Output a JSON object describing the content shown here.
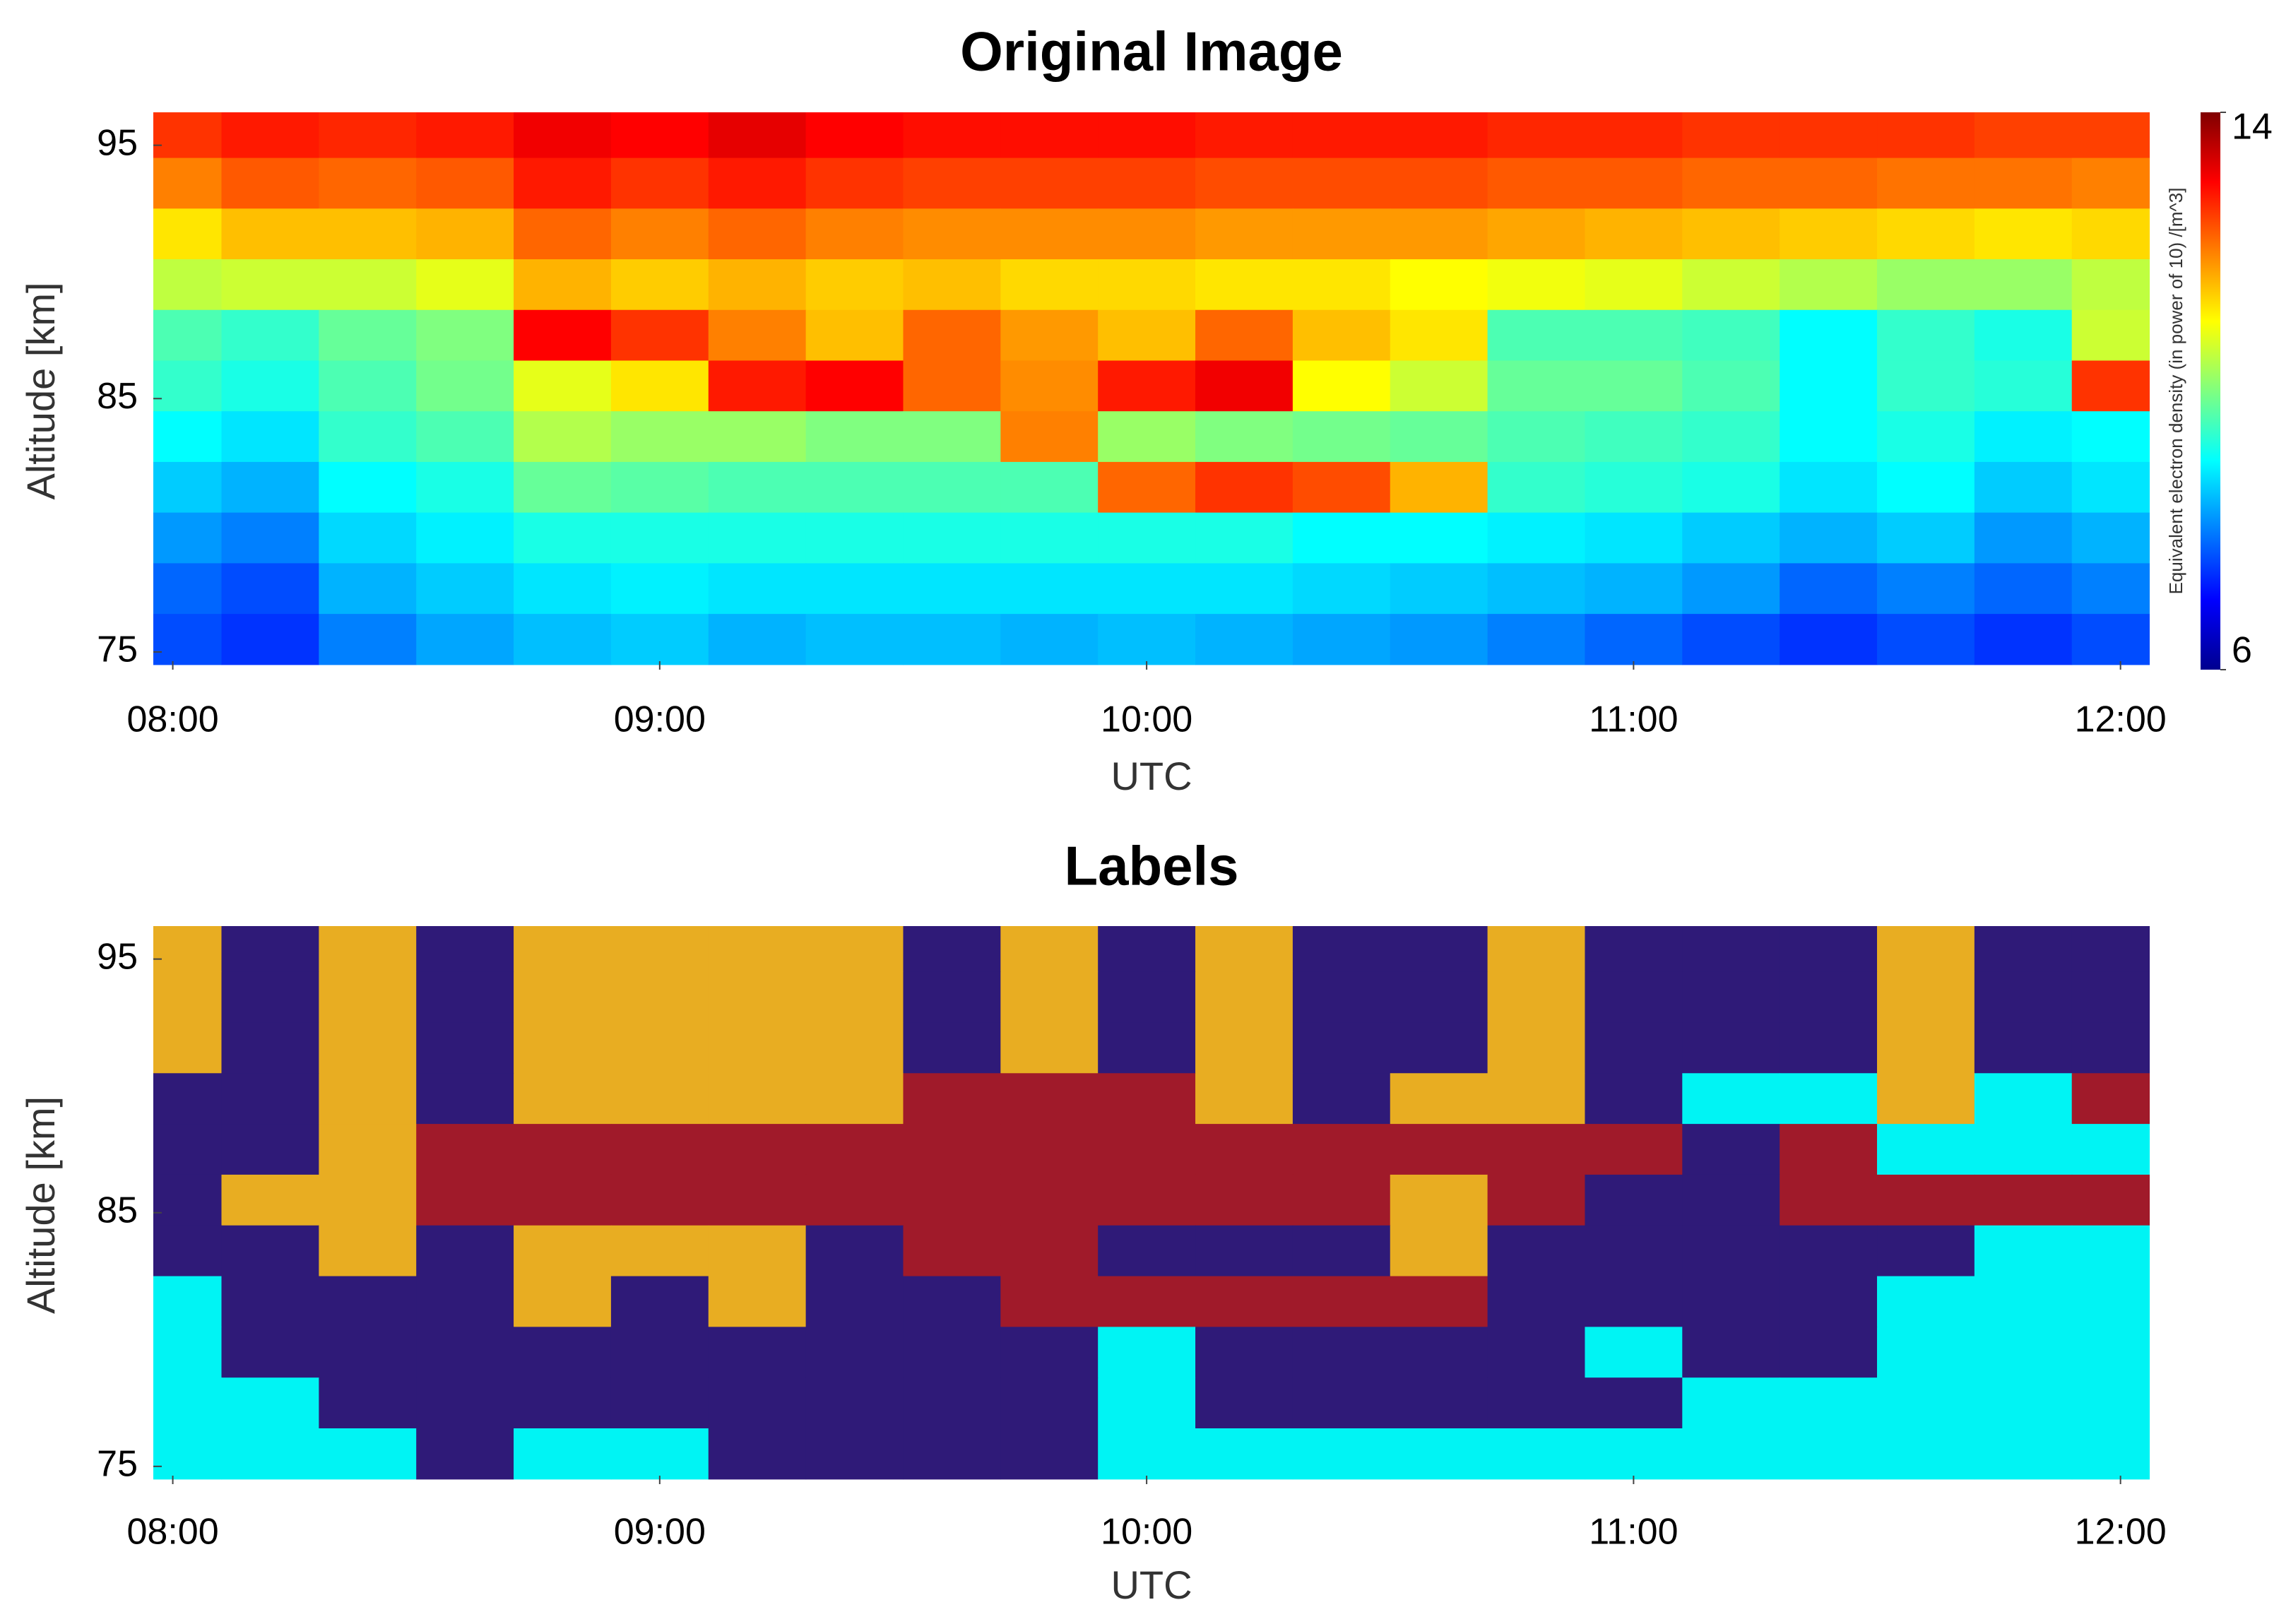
{
  "chart_data": [
    {
      "type": "heatmap",
      "title": "Original Image",
      "xlabel": "UTC",
      "ylabel": "Altitude [km]",
      "colorbar_label": "Equivalent electron density (in power of 10) /[m^3]",
      "colormap": "jet",
      "clim": [
        6,
        14
      ],
      "colorbar_ticks": [
        6,
        14
      ],
      "xlim": [
        7.96,
        12.06
      ],
      "ylim": [
        74.3,
        96.3
      ],
      "xticks": [
        {
          "value": 8,
          "label": "08:00"
        },
        {
          "value": 9,
          "label": "09:00"
        },
        {
          "value": 10,
          "label": "10:00"
        },
        {
          "value": 11,
          "label": "11:00"
        },
        {
          "value": 12,
          "label": "12:00"
        }
      ],
      "yticks": [
        75,
        85,
        95
      ],
      "x": [
        8.0,
        8.2,
        8.4,
        8.6,
        8.8,
        9.0,
        9.2,
        9.4,
        9.6,
        9.8,
        10.0,
        10.2,
        10.4,
        10.6,
        10.8,
        11.0,
        11.2,
        11.4,
        11.6,
        11.8,
        12.0
      ],
      "y": [
        95.5,
        93.5,
        91.5,
        89.5,
        87.5,
        85.5,
        83.5,
        81.5,
        79.5,
        77.5,
        75.5
      ],
      "z": [
        [
          12.6,
          12.8,
          12.7,
          12.8,
          13.1,
          13.0,
          13.2,
          13.0,
          12.9,
          12.9,
          12.9,
          12.8,
          12.8,
          12.8,
          12.7,
          12.7,
          12.6,
          12.6,
          12.6,
          12.5,
          12.5
        ],
        [
          12.0,
          12.3,
          12.2,
          12.3,
          12.8,
          12.6,
          12.8,
          12.6,
          12.5,
          12.5,
          12.5,
          12.4,
          12.4,
          12.4,
          12.3,
          12.3,
          12.2,
          12.2,
          12.1,
          12.1,
          12.0
        ],
        [
          11.2,
          11.5,
          11.5,
          11.6,
          12.2,
          12.0,
          12.2,
          12.0,
          11.9,
          11.9,
          11.9,
          11.8,
          11.8,
          11.8,
          11.7,
          11.6,
          11.5,
          11.4,
          11.3,
          11.2,
          11.3
        ],
        [
          10.5,
          10.6,
          10.6,
          10.8,
          11.6,
          11.4,
          11.6,
          11.4,
          11.5,
          11.3,
          11.3,
          11.2,
          11.2,
          11.0,
          10.9,
          10.8,
          10.6,
          10.4,
          10.2,
          10.2,
          10.5
        ],
        [
          9.6,
          9.4,
          9.8,
          10.0,
          13.0,
          12.6,
          12.0,
          11.5,
          12.2,
          11.8,
          11.5,
          12.2,
          11.5,
          11.2,
          9.6,
          9.6,
          9.5,
          9.0,
          9.4,
          9.2,
          10.6
        ],
        [
          9.4,
          9.2,
          9.6,
          9.9,
          10.8,
          11.2,
          12.8,
          13.0,
          12.2,
          11.9,
          12.8,
          13.1,
          11.0,
          10.6,
          9.8,
          9.8,
          9.6,
          9.0,
          9.4,
          9.3,
          12.6
        ],
        [
          9.0,
          8.8,
          9.4,
          9.6,
          10.4,
          10.2,
          10.2,
          10.0,
          10.0,
          12.0,
          10.2,
          10.0,
          9.9,
          9.8,
          9.6,
          9.5,
          9.4,
          9.0,
          9.2,
          8.9,
          9.0
        ],
        [
          8.6,
          8.4,
          9.0,
          9.2,
          9.8,
          9.7,
          9.6,
          9.6,
          9.6,
          9.6,
          12.2,
          12.6,
          12.4,
          11.6,
          9.4,
          9.3,
          9.2,
          8.8,
          9.0,
          8.6,
          8.8
        ],
        [
          8.2,
          8.0,
          8.7,
          8.9,
          9.2,
          9.2,
          9.2,
          9.2,
          9.2,
          9.2,
          9.2,
          9.2,
          9.0,
          9.0,
          8.9,
          8.8,
          8.6,
          8.4,
          8.6,
          8.2,
          8.4
        ],
        [
          7.8,
          7.6,
          8.4,
          8.6,
          8.8,
          8.9,
          8.8,
          8.8,
          8.8,
          8.8,
          8.8,
          8.8,
          8.7,
          8.6,
          8.5,
          8.4,
          8.2,
          7.8,
          8.0,
          7.8,
          8.0
        ],
        [
          7.6,
          7.4,
          8.0,
          8.3,
          8.5,
          8.6,
          8.4,
          8.5,
          8.5,
          8.4,
          8.5,
          8.4,
          8.3,
          8.2,
          8.0,
          7.8,
          7.6,
          7.4,
          7.6,
          7.4,
          7.6
        ]
      ]
    },
    {
      "type": "heatmap",
      "title": "Labels",
      "xlabel": "UTC",
      "ylabel": "Altitude [km]",
      "class_colors": [
        "#2f1a78",
        "#e8ad22",
        "#a01a2a",
        "#00f4f4"
      ],
      "xlim": [
        7.96,
        12.06
      ],
      "ylim": [
        74.3,
        96.3
      ],
      "xticks": [
        {
          "value": 8,
          "label": "08:00"
        },
        {
          "value": 9,
          "label": "09:00"
        },
        {
          "value": 10,
          "label": "10:00"
        },
        {
          "value": 11,
          "label": "11:00"
        },
        {
          "value": 12,
          "label": "12:00"
        }
      ],
      "yticks": [
        75,
        85,
        95
      ],
      "x": [
        8.0,
        8.2,
        8.4,
        8.6,
        8.8,
        9.0,
        9.2,
        9.4,
        9.6,
        9.8,
        10.0,
        10.2,
        10.4,
        10.6,
        10.8,
        11.0,
        11.2,
        11.4,
        11.6,
        11.8,
        12.0
      ],
      "y": [
        95.5,
        93.5,
        91.5,
        89.5,
        87.5,
        85.5,
        83.5,
        81.5,
        79.5,
        77.5,
        75.5
      ],
      "z": [
        [
          1,
          0,
          1,
          0,
          1,
          1,
          1,
          1,
          0,
          1,
          0,
          1,
          0,
          0,
          1,
          0,
          0,
          0,
          1,
          0,
          0
        ],
        [
          1,
          0,
          1,
          0,
          1,
          1,
          1,
          1,
          0,
          1,
          0,
          1,
          0,
          0,
          1,
          0,
          0,
          0,
          1,
          0,
          0
        ],
        [
          1,
          0,
          1,
          0,
          1,
          1,
          1,
          1,
          0,
          1,
          0,
          1,
          0,
          0,
          1,
          0,
          0,
          0,
          1,
          0,
          0
        ],
        [
          0,
          0,
          1,
          0,
          1,
          1,
          1,
          1,
          2,
          2,
          2,
          1,
          0,
          1,
          1,
          0,
          3,
          3,
          1,
          3,
          2
        ],
        [
          0,
          0,
          1,
          2,
          2,
          2,
          2,
          2,
          2,
          2,
          2,
          2,
          2,
          2,
          2,
          2,
          0,
          2,
          3,
          3,
          3
        ],
        [
          0,
          1,
          1,
          2,
          2,
          2,
          2,
          2,
          2,
          2,
          2,
          2,
          2,
          1,
          2,
          0,
          0,
          2,
          2,
          2,
          2
        ],
        [
          0,
          0,
          1,
          0,
          1,
          1,
          1,
          0,
          2,
          2,
          0,
          0,
          0,
          1,
          0,
          0,
          0,
          0,
          0,
          3,
          3
        ],
        [
          3,
          0,
          0,
          0,
          1,
          0,
          1,
          0,
          0,
          2,
          2,
          2,
          2,
          2,
          0,
          0,
          0,
          0,
          3,
          3,
          3
        ],
        [
          3,
          0,
          0,
          0,
          0,
          0,
          0,
          0,
          0,
          0,
          3,
          0,
          0,
          0,
          0,
          3,
          0,
          0,
          3,
          3,
          3
        ],
        [
          3,
          3,
          0,
          0,
          0,
          0,
          0,
          0,
          0,
          0,
          3,
          0,
          0,
          0,
          0,
          0,
          3,
          3,
          3,
          3,
          3
        ],
        [
          3,
          3,
          3,
          0,
          3,
          3,
          0,
          0,
          0,
          0,
          3,
          3,
          3,
          3,
          3,
          3,
          3,
          3,
          3,
          3,
          3
        ]
      ]
    }
  ]
}
